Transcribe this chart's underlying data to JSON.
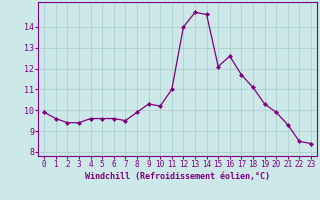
{
  "x": [
    0,
    1,
    2,
    3,
    4,
    5,
    6,
    7,
    8,
    9,
    10,
    11,
    12,
    13,
    14,
    15,
    16,
    17,
    18,
    19,
    20,
    21,
    22,
    23
  ],
  "y": [
    9.9,
    9.6,
    9.4,
    9.4,
    9.6,
    9.6,
    9.6,
    9.5,
    9.9,
    10.3,
    10.2,
    11.0,
    14.0,
    14.7,
    14.6,
    12.1,
    12.6,
    11.7,
    11.1,
    10.3,
    9.9,
    9.3,
    8.5,
    8.4
  ],
  "line_color": "#800080",
  "marker": "D",
  "marker_size": 2,
  "bg_color": "#cce8e8",
  "grid_color": "#aacccc",
  "xlabel": "Windchill (Refroidissement éolien,°C)",
  "xlabel_color": "#800080",
  "tick_color": "#800080",
  "ylim": [
    7.8,
    15.2
  ],
  "xlim": [
    -0.5,
    23.5
  ],
  "yticks": [
    8,
    9,
    10,
    11,
    12,
    13,
    14
  ],
  "xticks": [
    0,
    1,
    2,
    3,
    4,
    5,
    6,
    7,
    8,
    9,
    10,
    11,
    12,
    13,
    14,
    15,
    16,
    17,
    18,
    19,
    20,
    21,
    22,
    23
  ]
}
